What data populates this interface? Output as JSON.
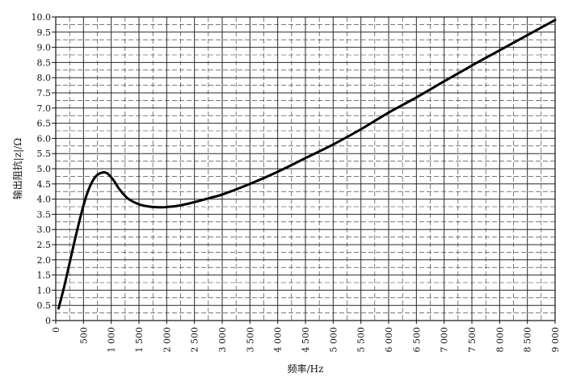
{
  "chart_data": {
    "type": "line",
    "title": "",
    "xlabel": "频率/Hz",
    "ylabel": "输出阻抗|z|/Ω",
    "xlim": [
      0,
      9000
    ],
    "ylim": [
      0,
      10
    ],
    "grid": true,
    "xticks": [
      0,
      500,
      1000,
      1500,
      2000,
      2500,
      3000,
      3500,
      4000,
      4500,
      5000,
      5500,
      6000,
      6500,
      7000,
      7500,
      8000,
      8500,
      9000
    ],
    "xtick_labels": [
      "0",
      "500",
      "1 000",
      "1 500",
      "2 000",
      "2 500",
      "3 000",
      "3 500",
      "4 000",
      "4 500",
      "5 000",
      "5 500",
      "6 000",
      "6 500",
      "7 000",
      "7 500",
      "8 000",
      "8 500",
      "9 000"
    ],
    "yticks": [
      0,
      0.5,
      1,
      1.5,
      2,
      2.5,
      3,
      3.5,
      4,
      4.5,
      5,
      5.5,
      6,
      6.5,
      7,
      7.5,
      8,
      8.5,
      9,
      9.5,
      10
    ],
    "ytick_labels": [
      "0",
      "0.5",
      "1.0",
      "1.5",
      "2.0",
      "2.5",
      "3.0",
      "3.5",
      "4.0",
      "4.5",
      "5.0",
      "5.5",
      "6.0",
      "6.5",
      "7.0",
      "7.5",
      "8.0",
      "8.5",
      "9.0",
      "9.5",
      "10.0"
    ],
    "series": [
      {
        "x": [
          50,
          150,
          250,
          350,
          450,
          550,
          650,
          750,
          850,
          900,
          950,
          1050,
          1150,
          1300,
          1500,
          1700,
          1900,
          2000,
          2200,
          2500,
          2800,
          3000,
          3500,
          4000,
          4500,
          5000,
          5500,
          6000,
          6500,
          7000,
          7500,
          8000,
          8500,
          9000
        ],
        "y": [
          0.4,
          1.1,
          1.9,
          2.7,
          3.45,
          4.1,
          4.55,
          4.8,
          4.88,
          4.87,
          4.82,
          4.6,
          4.32,
          4.02,
          3.83,
          3.75,
          3.73,
          3.74,
          3.78,
          3.9,
          4.05,
          4.15,
          4.5,
          4.9,
          5.35,
          5.8,
          6.3,
          6.85,
          7.35,
          7.88,
          8.4,
          8.9,
          9.4,
          9.9
        ]
      }
    ]
  }
}
